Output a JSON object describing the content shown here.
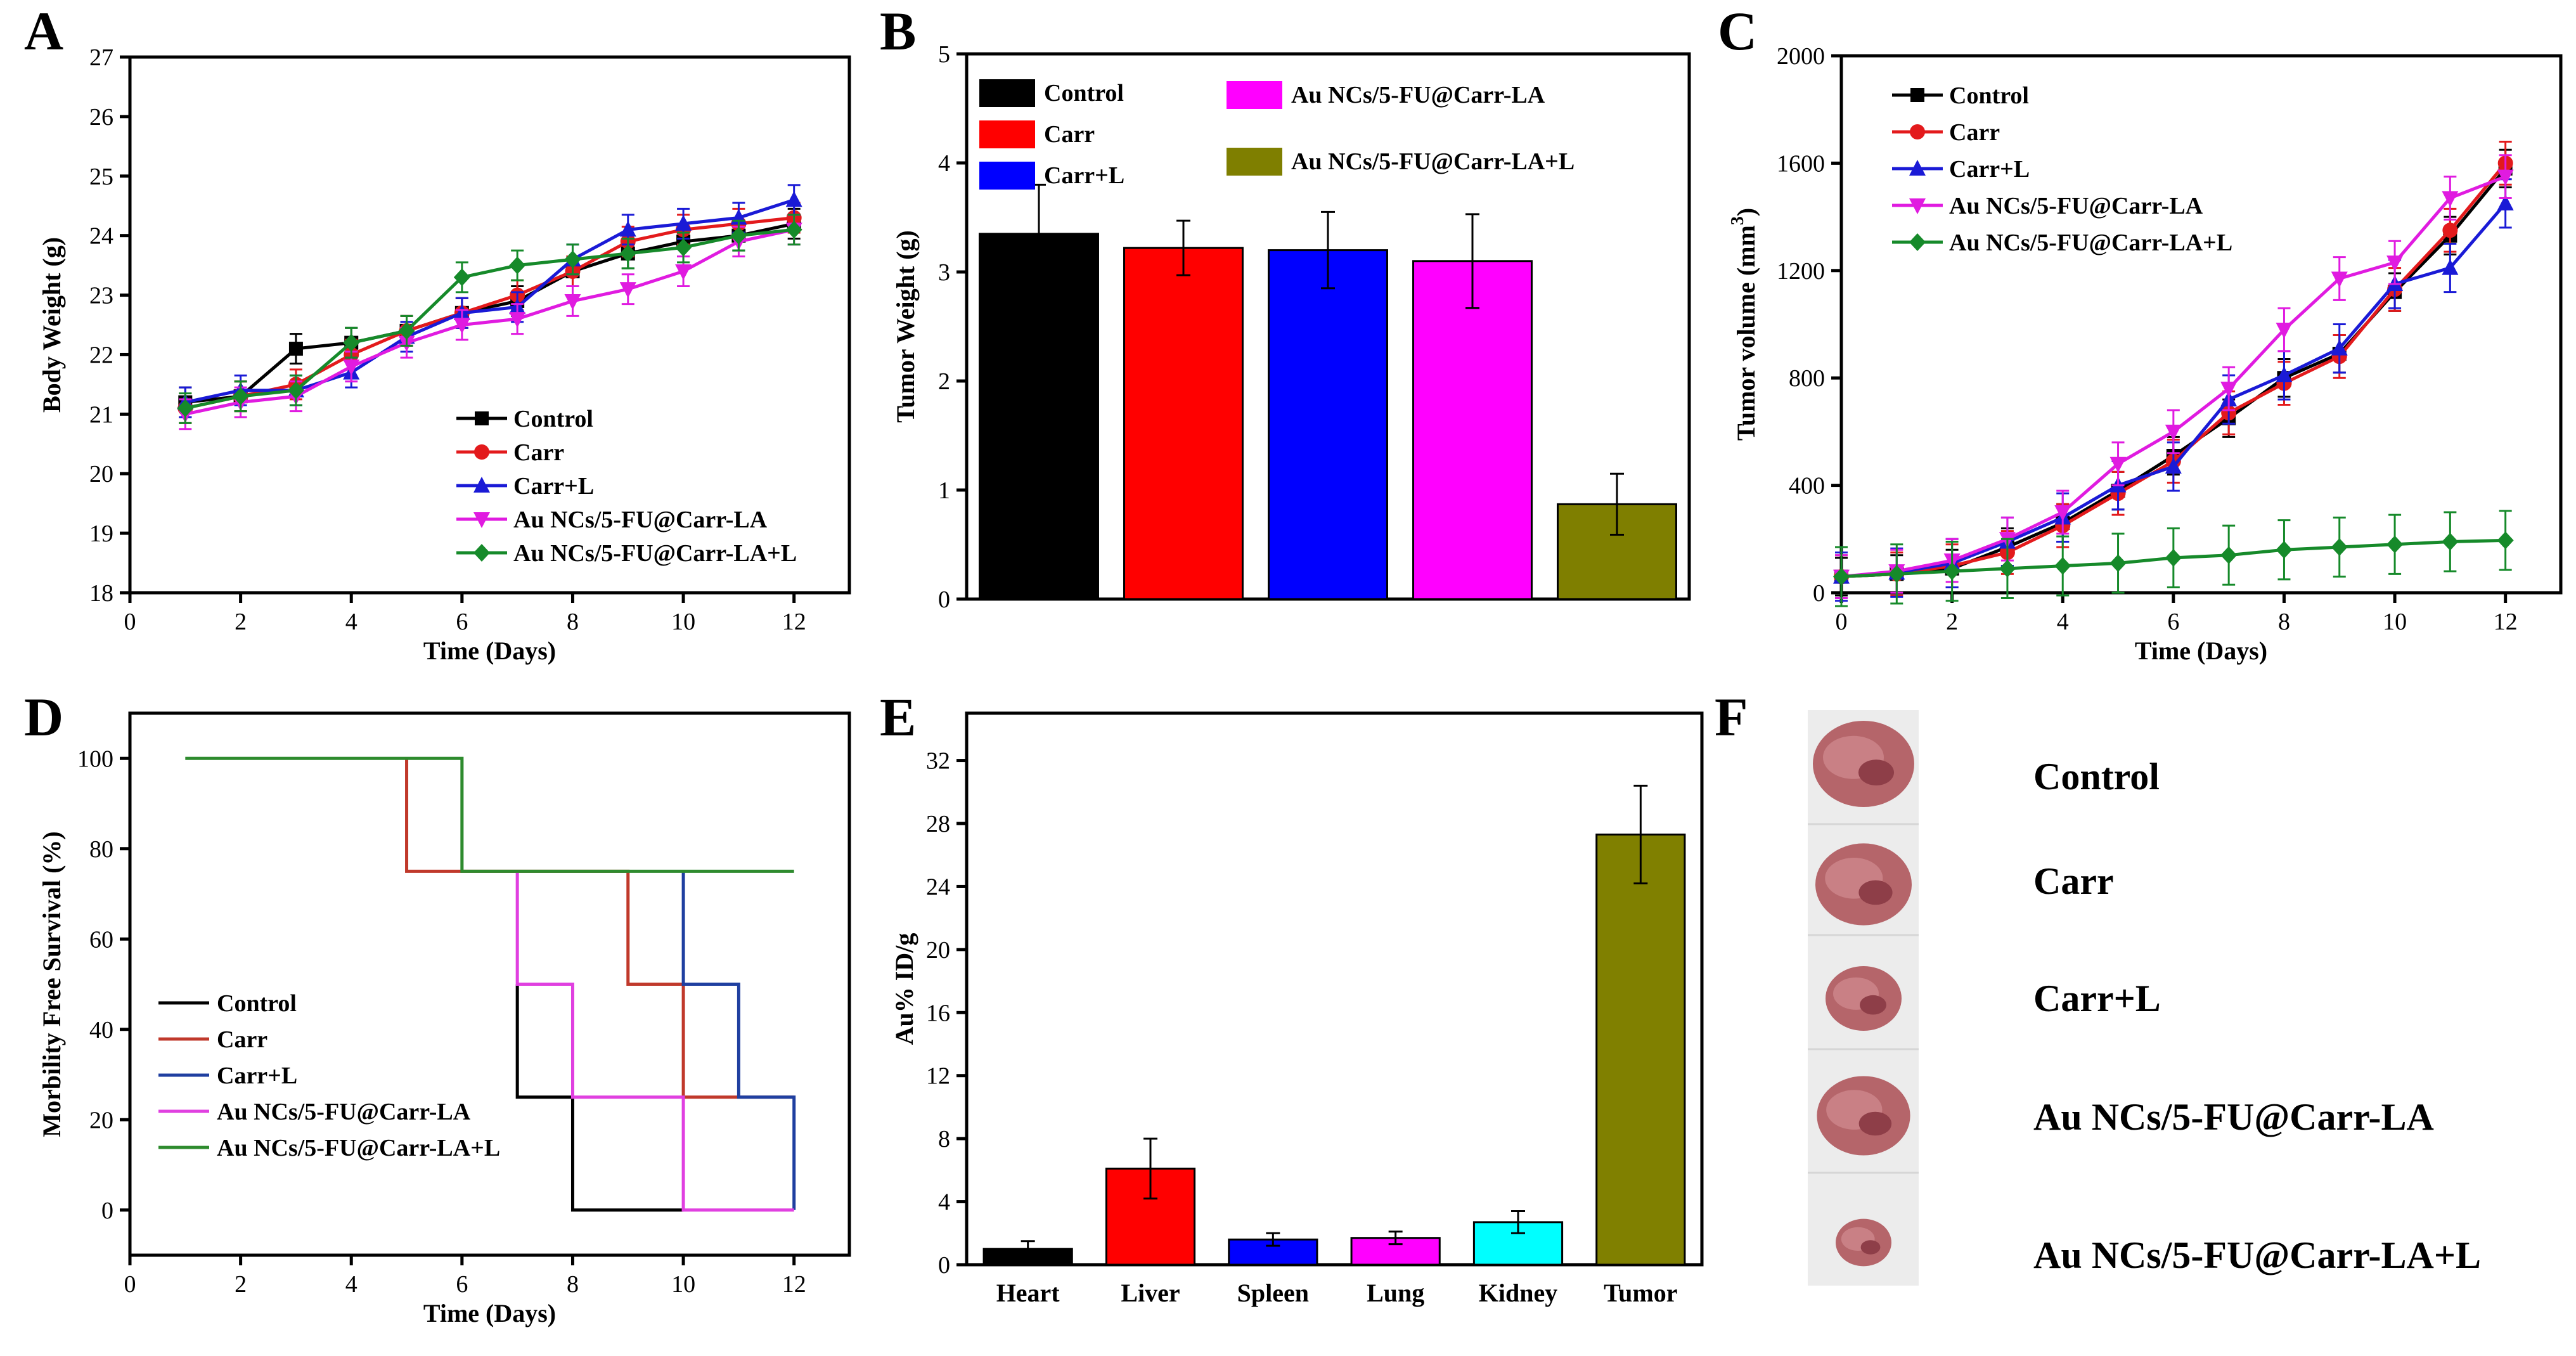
{
  "panel_letters": [
    "A",
    "B",
    "C",
    "D",
    "E",
    "F"
  ],
  "colors": {
    "Control": "#000000",
    "Carr": "#e31a1c",
    "Carr+L": "#1a1ad6",
    "Au NCs/5-FU@Carr-LA": "#e01be0",
    "Au NCs/5-FU@Carr-LA+L": "#168a2a",
    "bar_Control": "#000000",
    "bar_Carr": "#ff0000",
    "bar_CarrL": "#0000ff",
    "bar_AuLA": "#ff00ff",
    "bar_AuLAL": "#7f7f00",
    "bar_Kidney": "#00ffff",
    "bar_Tumor": "#808000",
    "surv_Control": "#000000",
    "surv_Carr": "#c0392b",
    "surv_CarrL": "#1f3fa0",
    "surv_AuLA": "#e040e0",
    "surv_AuLAL": "#2e8b2e"
  },
  "chart_data": [
    {
      "panel": "A",
      "type": "line",
      "xlabel": "Time (Days)",
      "ylabel": "Body Weight (g)",
      "xlim": [
        0,
        13
      ],
      "ylim": [
        18,
        27
      ],
      "xticks": [
        0,
        2,
        4,
        6,
        8,
        10,
        12
      ],
      "yticks": [
        18,
        19,
        20,
        21,
        22,
        23,
        24,
        25,
        26,
        27
      ],
      "legend": "bottom-right",
      "x": [
        1,
        2,
        3,
        4,
        5,
        6,
        7,
        8,
        9,
        10,
        11,
        12
      ],
      "series": [
        {
          "name": "Control",
          "marker": "square",
          "values": [
            21.2,
            21.3,
            22.1,
            22.2,
            22.4,
            22.7,
            22.9,
            23.4,
            23.7,
            23.9,
            24.0,
            24.2
          ]
        },
        {
          "name": "Carr",
          "marker": "circle",
          "values": [
            21.1,
            21.3,
            21.5,
            22.0,
            22.4,
            22.7,
            23.0,
            23.4,
            23.9,
            24.1,
            24.2,
            24.3
          ]
        },
        {
          "name": "Carr+L",
          "marker": "triangle-up",
          "values": [
            21.2,
            21.4,
            21.4,
            21.7,
            22.3,
            22.7,
            22.8,
            23.6,
            24.1,
            24.2,
            24.3,
            24.6
          ]
        },
        {
          "name": "Au NCs/5-FU@Carr-LA",
          "marker": "triangle-down",
          "values": [
            21.0,
            21.2,
            21.3,
            21.8,
            22.2,
            22.5,
            22.6,
            22.9,
            23.1,
            23.4,
            23.9,
            24.1
          ]
        },
        {
          "name": "Au NCs/5-FU@Carr-LA+L",
          "marker": "diamond",
          "values": [
            21.1,
            21.3,
            21.4,
            22.2,
            22.4,
            23.3,
            23.5,
            23.6,
            23.7,
            23.8,
            24.0,
            24.1
          ]
        }
      ],
      "error": 0.25
    },
    {
      "panel": "B",
      "type": "bar",
      "xlabel": "",
      "ylabel": "Tumor Weight (g)",
      "ylim": [
        0,
        5
      ],
      "yticks": [
        0,
        1,
        2,
        3,
        4,
        5
      ],
      "categories": [
        "Control",
        "Carr",
        "Carr+L",
        "Au NCs/5-FU@Carr-LA",
        "Au NCs/5-FU@Carr-LA+L"
      ],
      "values": [
        3.35,
        3.22,
        3.2,
        3.1,
        0.87
      ],
      "errors": [
        0.45,
        0.25,
        0.35,
        0.43,
        0.28
      ],
      "legend": "top"
    },
    {
      "panel": "C",
      "type": "line",
      "xlabel": "Time (Days)",
      "ylabel": "Tumor volume (mm3)",
      "xlim": [
        0,
        13
      ],
      "ylim": [
        0,
        2000
      ],
      "xticks": [
        0,
        2,
        4,
        6,
        8,
        10,
        12
      ],
      "yticks": [
        0,
        400,
        800,
        1200,
        1600,
        2000
      ],
      "legend": "top-left",
      "x": [
        0,
        1,
        2,
        3,
        4,
        5,
        6,
        7,
        8,
        9,
        10,
        11,
        12
      ],
      "series": [
        {
          "name": "Control",
          "marker": "square",
          "values": [
            60,
            70,
            90,
            170,
            260,
            380,
            510,
            650,
            800,
            890,
            1120,
            1330,
            1580
          ],
          "error": 70
        },
        {
          "name": "Carr",
          "marker": "circle",
          "values": [
            60,
            70,
            100,
            150,
            250,
            370,
            490,
            670,
            780,
            880,
            1130,
            1350,
            1600
          ],
          "error": 80
        },
        {
          "name": "Carr+L",
          "marker": "triangle-up",
          "values": [
            60,
            75,
            110,
            190,
            280,
            400,
            470,
            720,
            810,
            910,
            1150,
            1210,
            1450
          ],
          "error": 90
        },
        {
          "name": "Au NCs/5-FU@Carr-LA",
          "marker": "triangle-down",
          "values": [
            60,
            80,
            120,
            200,
            300,
            480,
            600,
            760,
            980,
            1170,
            1230,
            1470,
            1550
          ],
          "error": 80
        },
        {
          "name": "Au NCs/5-FU@Carr-LA+L",
          "marker": "diamond",
          "values": [
            60,
            70,
            80,
            90,
            100,
            110,
            130,
            140,
            160,
            170,
            180,
            190,
            195
          ],
          "error": 110
        }
      ]
    },
    {
      "panel": "D",
      "type": "line",
      "subtype": "step",
      "xlabel": "Time (Days)",
      "ylabel": "Morbility Free Survival (%)",
      "xlim": [
        0,
        13
      ],
      "ylim": [
        -10,
        110
      ],
      "xticks": [
        0,
        2,
        4,
        6,
        8,
        10,
        12
      ],
      "yticks": [
        0,
        20,
        40,
        60,
        80,
        100
      ],
      "legend": "bottom-left",
      "series": [
        {
          "name": "Control",
          "points": [
            [
              7,
              50
            ],
            [
              7,
              25
            ],
            [
              8,
              25
            ],
            [
              8,
              0
            ],
            [
              10,
              0
            ]
          ]
        },
        {
          "name": "Carr",
          "points": [
            [
              5,
              100
            ],
            [
              5,
              75
            ],
            [
              9,
              75
            ],
            [
              9,
              50
            ],
            [
              10,
              50
            ],
            [
              10,
              25
            ],
            [
              12,
              25
            ]
          ]
        },
        {
          "name": "Carr+L",
          "points": [
            [
              10,
              75
            ],
            [
              10,
              50
            ],
            [
              11,
              50
            ],
            [
              11,
              25
            ],
            [
              12,
              25
            ],
            [
              12,
              0
            ]
          ]
        },
        {
          "name": "Au NCs/5-FU@Carr-LA",
          "points": [
            [
              7,
              75
            ],
            [
              7,
              50
            ],
            [
              8,
              50
            ],
            [
              8,
              25
            ],
            [
              10,
              25
            ],
            [
              10,
              0
            ],
            [
              12,
              0
            ]
          ]
        },
        {
          "name": "Au NCs/5-FU@Carr-LA+L",
          "points": [
            [
              1,
              100
            ],
            [
              6,
              100
            ],
            [
              6,
              75
            ],
            [
              12,
              75
            ]
          ]
        }
      ]
    },
    {
      "panel": "E",
      "type": "bar",
      "xlabel": "",
      "ylabel": "Au% ID/g",
      "ylim": [
        0,
        35
      ],
      "yticks": [
        0,
        4,
        8,
        12,
        16,
        20,
        24,
        28,
        32
      ],
      "categories": [
        "Heart",
        "Liver",
        "Spleen",
        "Lung",
        "Kidney",
        "Tumor"
      ],
      "values": [
        1.0,
        6.1,
        1.6,
        1.7,
        2.7,
        27.3
      ],
      "errors": [
        0.5,
        1.9,
        0.4,
        0.4,
        0.7,
        3.1
      ]
    }
  ],
  "photo_panel": {
    "labels": [
      "Control",
      "Carr",
      "Carr+L",
      "Au NCs/5-FU@Carr-LA",
      "Au NCs/5-FU@Carr-LA+L"
    ],
    "tumor_relative_size": [
      1.0,
      0.95,
      0.75,
      0.92,
      0.55
    ]
  }
}
